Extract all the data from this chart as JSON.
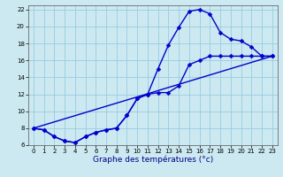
{
  "xlabel": "Graphe des températures (°c)",
  "background_color": "#cce8f0",
  "grid_color": "#99cce0",
  "line_color": "#0000cc",
  "xlim": [
    -0.5,
    23.5
  ],
  "ylim": [
    6,
    22.5
  ],
  "xticks": [
    0,
    1,
    2,
    3,
    4,
    5,
    6,
    7,
    8,
    9,
    10,
    11,
    12,
    13,
    14,
    15,
    16,
    17,
    18,
    19,
    20,
    21,
    22,
    23
  ],
  "yticks": [
    6,
    8,
    10,
    12,
    14,
    16,
    18,
    20,
    22
  ],
  "curve1_x": [
    0,
    1,
    2,
    3,
    4,
    5,
    6,
    7,
    8,
    9,
    10,
    11,
    12,
    13,
    14,
    15,
    16,
    17,
    18,
    19,
    20,
    21,
    22,
    23
  ],
  "curve1_y": [
    8.0,
    7.8,
    7.0,
    6.5,
    6.3,
    7.0,
    7.5,
    7.8,
    8.0,
    9.5,
    11.5,
    12.0,
    15.0,
    17.8,
    19.9,
    21.8,
    22.0,
    21.5,
    19.3,
    18.5,
    18.3,
    17.6,
    16.5,
    16.5
  ],
  "curve2_x": [
    0,
    1,
    2,
    3,
    4,
    5,
    6,
    7,
    8,
    9,
    10,
    11,
    12,
    13,
    14,
    15,
    16,
    17,
    18,
    19,
    20,
    21,
    22,
    23
  ],
  "curve2_y": [
    8.0,
    7.8,
    7.0,
    6.5,
    6.3,
    7.0,
    7.5,
    7.8,
    8.0,
    9.5,
    11.5,
    12.0,
    12.2,
    12.2,
    13.0,
    15.5,
    16.0,
    16.5,
    16.5,
    16.5,
    16.5,
    16.5,
    16.5,
    16.5
  ],
  "curve3_x": [
    0,
    23
  ],
  "curve3_y": [
    8.0,
    16.5
  ],
  "marker_size": 2.5,
  "line_width": 1.0,
  "tick_fontsize": 5.0,
  "xlabel_fontsize": 6.5
}
